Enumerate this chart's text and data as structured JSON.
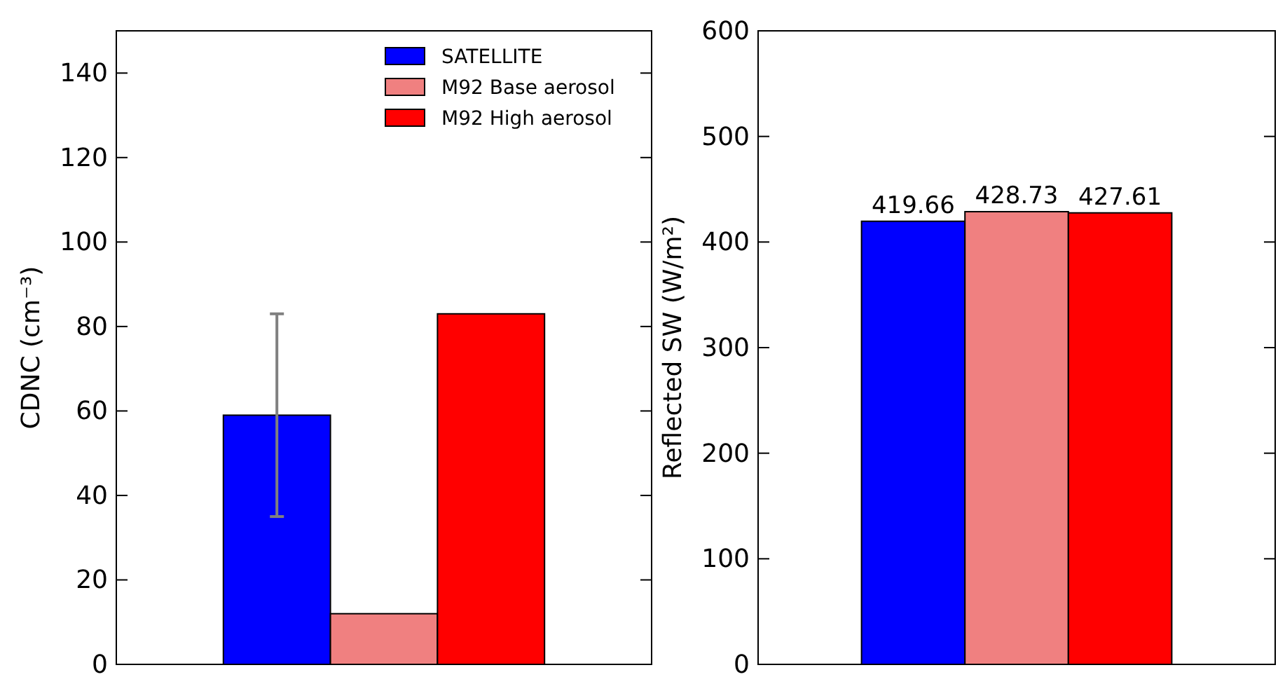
{
  "chart_data": [
    {
      "type": "bar",
      "ylabel": "CDNC (cm⁻³)",
      "categories": [
        null
      ],
      "ylim": [
        0,
        150
      ],
      "yticks": [
        0,
        20,
        40,
        60,
        80,
        100,
        120,
        140
      ],
      "legend": "top right",
      "series": [
        {
          "name": "SATELLITE",
          "color": "#0000ff",
          "values": [
            59
          ],
          "errors": [
            24
          ]
        },
        {
          "name": "M92 Base aerosol",
          "color": "#f08080",
          "values": [
            12
          ]
        },
        {
          "name": "M92 High aerosol",
          "color": "#ff0000",
          "values": [
            83
          ]
        }
      ]
    },
    {
      "type": "bar",
      "ylabel": "Reflected SW (W/m²)",
      "categories": [
        null,
        null,
        null
      ],
      "values": [
        419.66,
        428.73,
        427.61
      ],
      "colors": [
        "#0000ff",
        "#f08080",
        "#ff0000"
      ],
      "ylim": [
        0,
        600
      ],
      "yticks": [
        0,
        100,
        200,
        300,
        400,
        500,
        600
      ],
      "data_labels": true
    }
  ]
}
